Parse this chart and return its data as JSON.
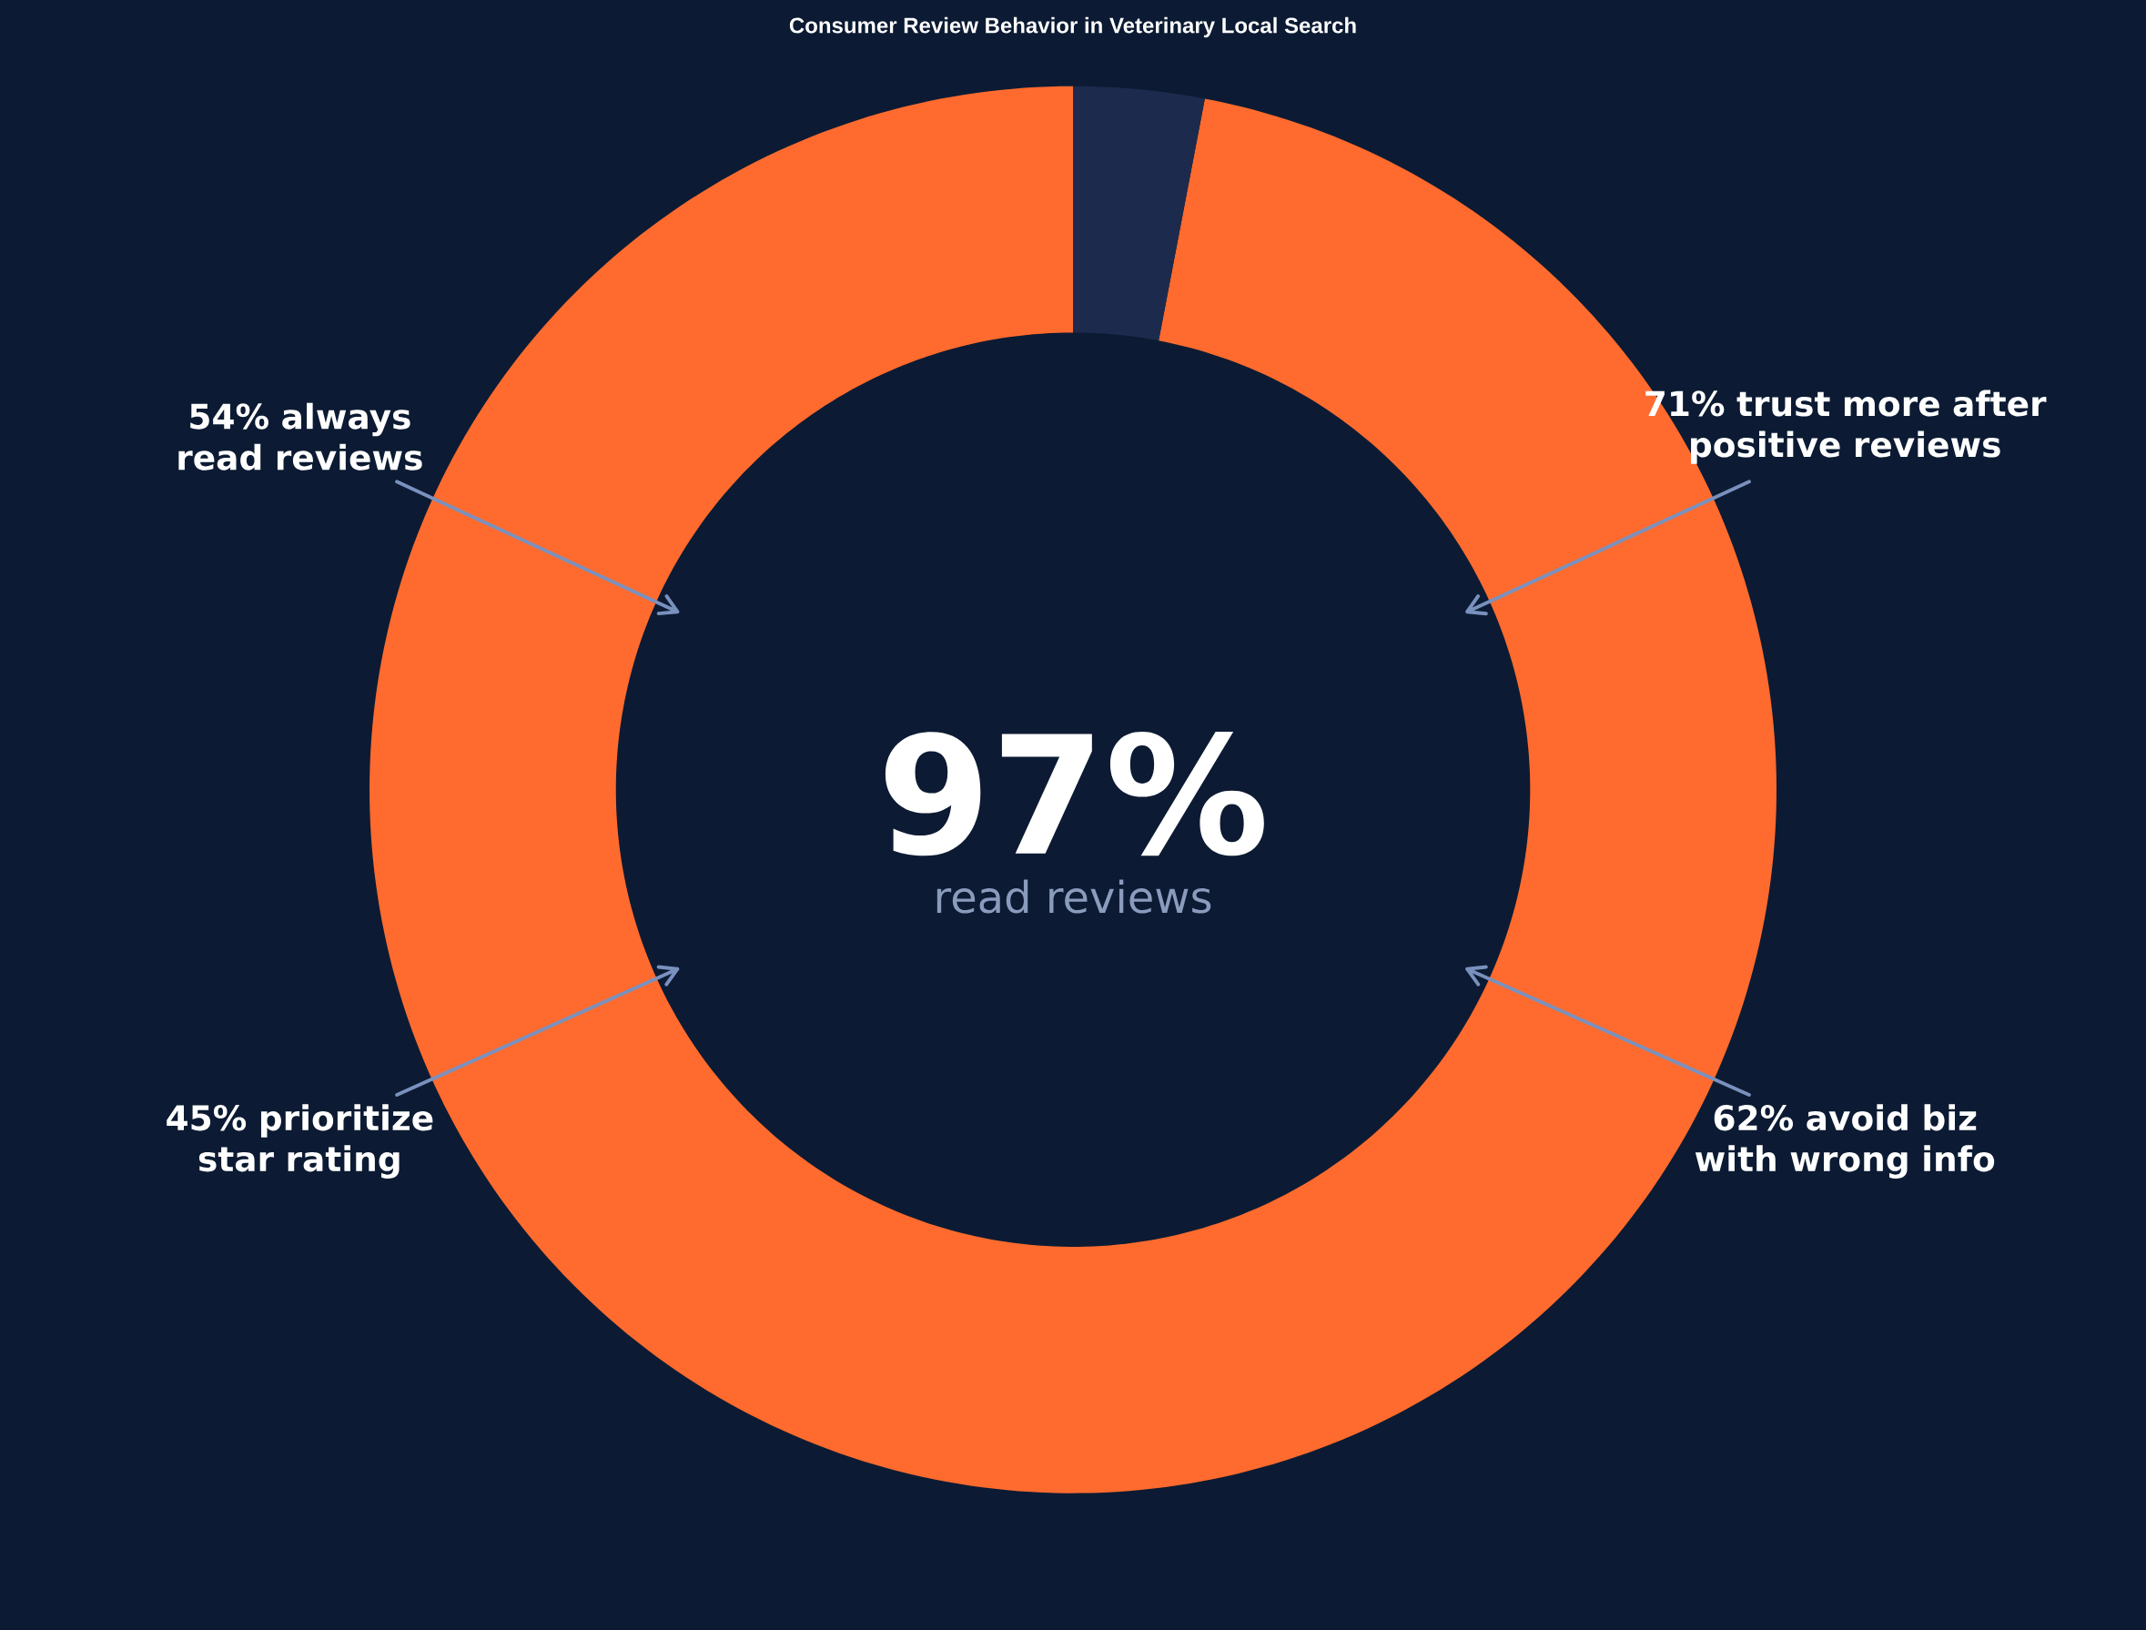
{
  "chart_data": {
    "type": "donut",
    "title": "Consumer Review Behavior in Veterinary Local Search",
    "categories": [
      null,
      null
    ],
    "values": [
      97,
      3
    ],
    "colors": [
      "#ff6b2e",
      "#1c2b4d"
    ],
    "annotations": [
      "97%",
      "read reviews",
      "54% always read reviews",
      "71% trust more after positive reviews",
      "45% prioritize star rating",
      "62% avoid biz with wrong info"
    ]
  }
}
